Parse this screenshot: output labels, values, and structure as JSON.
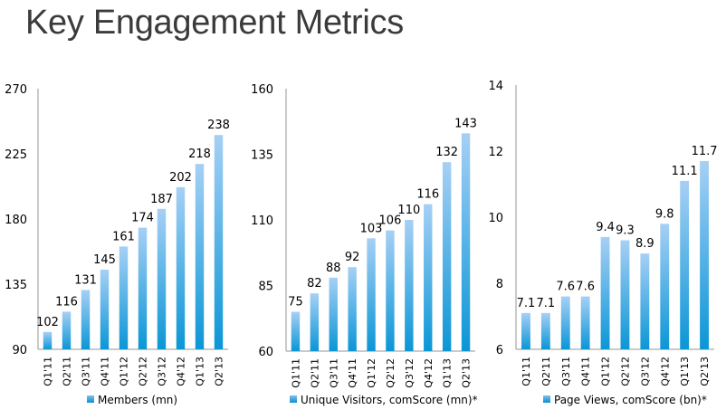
{
  "title": "Key Engagement Metrics",
  "colors": {
    "bar_top": "#a6d0f5",
    "bar_bottom": "#0b96d6",
    "axis": "#b8b8b8"
  },
  "chart_data": [
    {
      "type": "bar",
      "categories": [
        "Q1'11",
        "Q2'11",
        "Q3'11",
        "Q4'11",
        "Q1'12",
        "Q2'12",
        "Q3'12",
        "Q4'12",
        "Q1'13",
        "Q2'13"
      ],
      "series": [
        {
          "name": "Members (mn)",
          "values": [
            102,
            116,
            131,
            145,
            161,
            174,
            187,
            202,
            218,
            238
          ]
        }
      ],
      "data_labels": [
        "102",
        "116",
        "131",
        "145",
        "161",
        "174",
        "187",
        "202",
        "218",
        "238"
      ],
      "yticks": [
        "90",
        "135",
        "180",
        "225",
        "270"
      ],
      "ylim": [
        90,
        270
      ],
      "legend": "bottom",
      "grid": false
    },
    {
      "type": "bar",
      "categories": [
        "Q1'11",
        "Q2'11",
        "Q3'11",
        "Q4'11",
        "Q1'12",
        "Q2'12",
        "Q3'12",
        "Q4'12",
        "Q1'13",
        "Q2'13"
      ],
      "series": [
        {
          "name": "Unique Visitors, comScore (mn)*",
          "values": [
            75,
            82,
            88,
            92,
            103,
            106,
            110,
            116,
            132,
            143
          ]
        }
      ],
      "data_labels": [
        "75",
        "82",
        "88",
        "92",
        "103",
        "106",
        "110",
        "116",
        "132",
        "143"
      ],
      "yticks": [
        "60",
        "85",
        "110",
        "135",
        "160"
      ],
      "ylim": [
        60,
        160
      ],
      "legend": "bottom",
      "grid": false
    },
    {
      "type": "bar",
      "categories": [
        "Q1'11",
        "Q2'11",
        "Q3'11",
        "Q4'11",
        "Q1'12",
        "Q2'12",
        "Q3'12",
        "Q4'12",
        "Q1'13",
        "Q2'13"
      ],
      "series": [
        {
          "name": "Page Views, comScore (bn)*",
          "values": [
            7.1,
            7.1,
            7.6,
            7.6,
            9.4,
            9.3,
            8.9,
            9.8,
            11.1,
            11.7
          ]
        }
      ],
      "data_labels": [
        "7.1",
        "7.1",
        "7.6",
        "7.6",
        "9.4",
        "9.3",
        "8.9",
        "9.8",
        "11.1",
        "11.7"
      ],
      "yticks": [
        "6",
        "8",
        "10",
        "12",
        "14"
      ],
      "ylim": [
        6,
        14
      ],
      "legend": "bottom",
      "grid": false
    }
  ]
}
